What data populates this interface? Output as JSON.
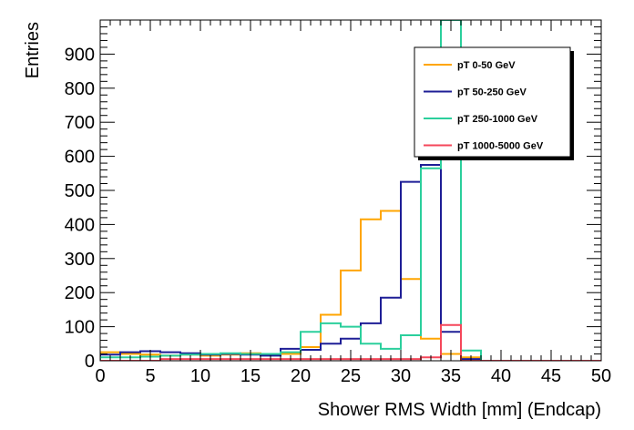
{
  "chart_data": {
    "type": "step",
    "xlabel": "Shower RMS Width [mm] (Endcap)",
    "ylabel": "Entries",
    "xlim": [
      0,
      50
    ],
    "ylim": [
      0,
      1000
    ],
    "x_ticks": [
      0,
      5,
      10,
      15,
      20,
      25,
      30,
      35,
      40,
      45,
      50
    ],
    "y_ticks": [
      0,
      100,
      200,
      300,
      400,
      500,
      600,
      700,
      800,
      900
    ],
    "bin_edges": [
      0,
      2,
      4,
      6,
      8,
      10,
      12,
      14,
      16,
      18,
      20,
      22,
      24,
      26,
      28,
      30,
      32,
      34,
      36,
      38,
      40,
      42,
      44,
      46,
      48,
      50
    ],
    "legend_position": "top-right",
    "series": [
      {
        "name": "pT 0-50 GeV",
        "color": "#ffa500",
        "values": [
          25,
          20,
          18,
          15,
          18,
          15,
          18,
          22,
          18,
          20,
          40,
          135,
          265,
          415,
          440,
          240,
          65,
          20,
          10,
          0,
          0,
          0,
          0,
          0,
          0
        ]
      },
      {
        "name": "pT 50-250 GeV",
        "color": "#1e1e96",
        "values": [
          18,
          25,
          28,
          25,
          22,
          18,
          20,
          18,
          15,
          35,
          32,
          50,
          65,
          110,
          185,
          525,
          575,
          85,
          5,
          0,
          0,
          0,
          0,
          0,
          0
        ]
      },
      {
        "name": "pT 250-1000 GeV",
        "color": "#2bcf9c",
        "values": [
          10,
          10,
          12,
          15,
          18,
          20,
          22,
          20,
          20,
          25,
          85,
          110,
          100,
          50,
          35,
          75,
          565,
          1000,
          30,
          0,
          0,
          0,
          0,
          0,
          0
        ]
      },
      {
        "name": "pT 1000-5000 GeV",
        "color": "#f5475a",
        "values": [
          0,
          0,
          0,
          5,
          5,
          5,
          5,
          5,
          5,
          5,
          5,
          5,
          5,
          5,
          5,
          5,
          10,
          105,
          0,
          0,
          0,
          0,
          0,
          0,
          0
        ]
      }
    ]
  }
}
